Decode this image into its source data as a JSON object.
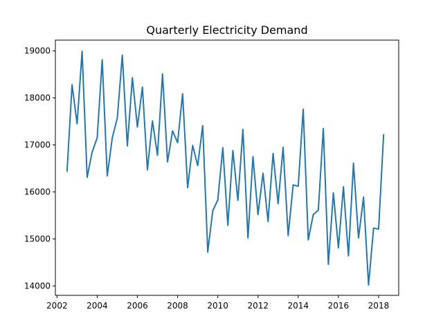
{
  "chart_data": {
    "type": "line",
    "title": "Quarterly Electricity Demand",
    "xlabel": "",
    "ylabel": "",
    "xlim": [
      2001.92,
      2019.0
    ],
    "ylim": [
      13800,
      19230
    ],
    "x_ticks": [
      2002,
      2004,
      2006,
      2008,
      2010,
      2012,
      2014,
      2016,
      2018
    ],
    "y_ticks": [
      14000,
      15000,
      16000,
      17000,
      18000,
      19000
    ],
    "grid": false,
    "line_color": "#1f77b4",
    "series": [
      {
        "x": [
          2002.5,
          2002.75,
          2003.0,
          2003.25,
          2003.5,
          2003.75,
          2004.0,
          2004.25,
          2004.5,
          2004.75,
          2005.0,
          2005.25,
          2005.5,
          2005.75,
          2006.0,
          2006.25,
          2006.5,
          2006.75,
          2007.0,
          2007.25,
          2007.5,
          2007.75,
          2008.0,
          2008.25,
          2008.5,
          2008.75,
          2009.0,
          2009.25,
          2009.5,
          2009.75,
          2010.0,
          2010.25,
          2010.5,
          2010.75,
          2011.0,
          2011.25,
          2011.5,
          2011.75,
          2012.0,
          2012.25,
          2012.5,
          2012.75,
          2013.0,
          2013.25,
          2013.5,
          2013.75,
          2014.0,
          2014.25,
          2014.5,
          2014.75,
          2015.0,
          2015.25,
          2015.5,
          2015.75,
          2016.0,
          2016.25,
          2016.5,
          2016.75,
          2017.0,
          2017.25,
          2017.5,
          2017.75,
          2018.0,
          2018.25
        ],
        "values": [
          16430,
          18280,
          17450,
          18990,
          16310,
          16850,
          17150,
          18810,
          16340,
          17150,
          17570,
          18910,
          16980,
          18430,
          17380,
          18230,
          16470,
          17510,
          16780,
          18510,
          16640,
          17300,
          17050,
          18090,
          16090,
          16990,
          16560,
          17410,
          14720,
          15600,
          15830,
          16940,
          15290,
          16880,
          15820,
          17330,
          15020,
          16750,
          15520,
          16400,
          15370,
          16820,
          15750,
          16950,
          15070,
          16150,
          16120,
          17760,
          14980,
          15520,
          15610,
          17350,
          14460,
          15980,
          14810,
          16110,
          14640,
          16610,
          15020,
          15890,
          14020,
          15230,
          15210,
          17230
        ]
      }
    ]
  }
}
